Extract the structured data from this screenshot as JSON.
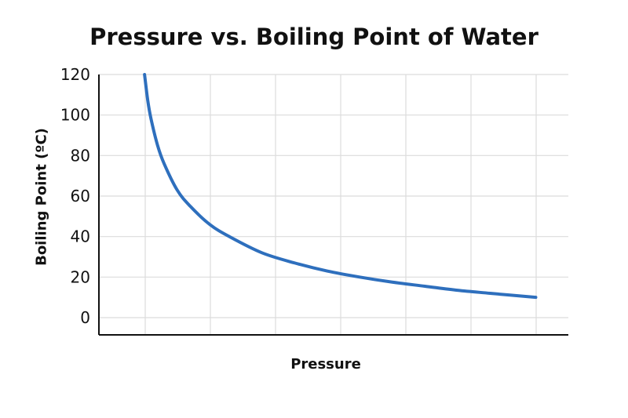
{
  "chart_data": {
    "type": "line",
    "title": "Pressure vs. Boiling Point of Water",
    "xlabel": "Pressure",
    "ylabel": "Boiling Point (ºC)",
    "ylim": [
      0,
      120
    ],
    "yticks": [
      "0",
      "20",
      "40",
      "60",
      "80",
      "100",
      "120"
    ],
    "xlim": [
      0,
      7.2
    ],
    "grid": true,
    "legend": "none",
    "series": [
      {
        "color": "#2e6fbd",
        "x": [
          0.7,
          0.75,
          0.8,
          0.9,
          1.0,
          1.2,
          1.4,
          1.7,
          2.0,
          2.5,
          3.0,
          3.5,
          4.0,
          4.5,
          5.0,
          5.5,
          6.0,
          6.7
        ],
        "y": [
          120,
          107,
          98,
          85,
          76,
          63,
          55,
          46,
          40,
          32,
          27,
          23,
          20,
          17.5,
          15.5,
          13.5,
          12,
          10
        ]
      }
    ]
  }
}
